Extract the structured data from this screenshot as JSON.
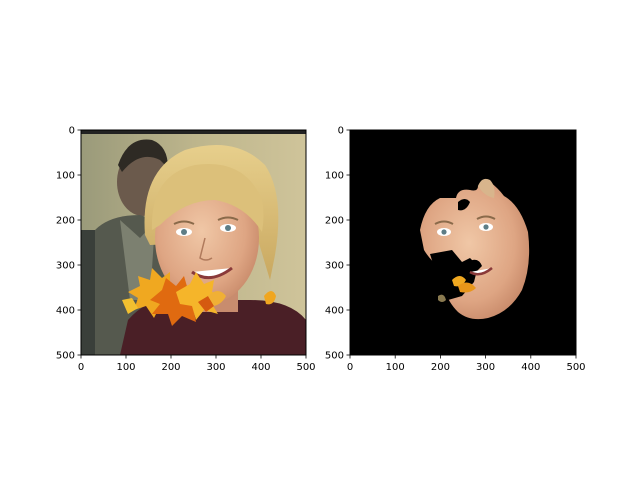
{
  "figure": {
    "background": "#ffffff"
  },
  "panels": [
    {
      "id": "panel-left",
      "x_ticks": [
        "0",
        "100",
        "200",
        "300",
        "400",
        "500"
      ],
      "y_ticks": [
        "0",
        "100",
        "200",
        "300",
        "400",
        "500"
      ],
      "image_content": "photo of a smiling person with blond hair, second man in background, autumn leaves over the mouth"
    },
    {
      "id": "panel-right",
      "x_ticks": [
        "0",
        "100",
        "200",
        "300",
        "400",
        "500"
      ],
      "y_ticks": [
        "0",
        "100",
        "200",
        "300",
        "400",
        "500"
      ],
      "image_content": "segmented face region on black background, mouth area masked with holes and leaf fragments"
    }
  ],
  "chart_data": [
    {
      "type": "image",
      "title": "",
      "xlim": [
        0,
        500
      ],
      "ylim": [
        500,
        0
      ],
      "x_ticks": [
        0,
        100,
        200,
        300,
        400,
        500
      ],
      "y_ticks": [
        0,
        100,
        200,
        300,
        400,
        500
      ],
      "colors": {
        "leaf": "#e8a020",
        "skin": "#e3b08f",
        "hair": "#d9b96a",
        "jacket": "#4a1f26"
      }
    },
    {
      "type": "image",
      "title": "",
      "xlim": [
        0,
        500
      ],
      "ylim": [
        500,
        0
      ],
      "x_ticks": [
        0,
        100,
        200,
        300,
        400,
        500
      ],
      "y_ticks": [
        0,
        100,
        200,
        300,
        400,
        500
      ],
      "colors": {
        "background": "#000000",
        "skin": "#e3b08f",
        "leaf": "#e8a020"
      }
    }
  ]
}
